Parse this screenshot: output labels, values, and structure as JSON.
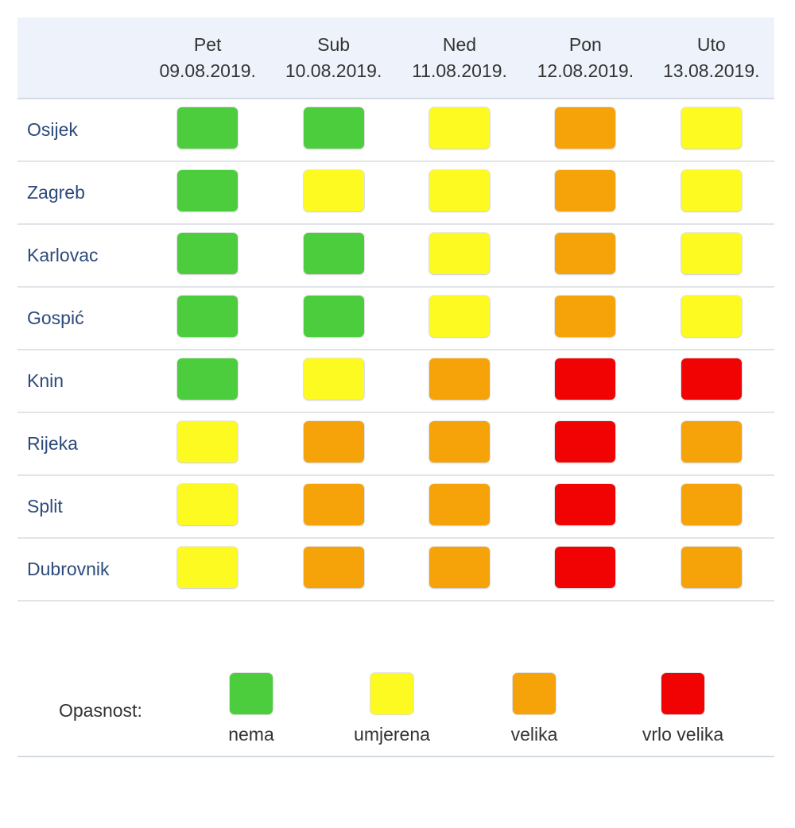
{
  "levels": {
    "nema": {
      "label": "nema",
      "color": "#4ccd3e"
    },
    "umjerena": {
      "label": "umjerena",
      "color": "#fdfa21"
    },
    "velika": {
      "label": "velika",
      "color": "#f6a209"
    },
    "vrlo_velika": {
      "label": "vrlo velika",
      "color": "#f20303"
    }
  },
  "table": {
    "days": [
      {
        "name": "Pet",
        "date": "09.08.2019."
      },
      {
        "name": "Sub",
        "date": "10.08.2019."
      },
      {
        "name": "Ned",
        "date": "11.08.2019."
      },
      {
        "name": "Pon",
        "date": "12.08.2019."
      },
      {
        "name": "Uto",
        "date": "13.08.2019."
      }
    ],
    "rows": [
      {
        "city": "Osijek",
        "levels": [
          "nema",
          "nema",
          "umjerena",
          "velika",
          "umjerena"
        ]
      },
      {
        "city": "Zagreb",
        "levels": [
          "nema",
          "umjerena",
          "umjerena",
          "velika",
          "umjerena"
        ]
      },
      {
        "city": "Karlovac",
        "levels": [
          "nema",
          "nema",
          "umjerena",
          "velika",
          "umjerena"
        ]
      },
      {
        "city": "Gospić",
        "levels": [
          "nema",
          "nema",
          "umjerena",
          "velika",
          "umjerena"
        ]
      },
      {
        "city": "Knin",
        "levels": [
          "nema",
          "umjerena",
          "velika",
          "vrlo_velika",
          "vrlo_velika"
        ]
      },
      {
        "city": "Rijeka",
        "levels": [
          "umjerena",
          "velika",
          "velika",
          "vrlo_velika",
          "velika"
        ]
      },
      {
        "city": "Split",
        "levels": [
          "umjerena",
          "velika",
          "velika",
          "vrlo_velika",
          "velika"
        ]
      },
      {
        "city": "Dubrovnik",
        "levels": [
          "umjerena",
          "velika",
          "velika",
          "vrlo_velika",
          "velika"
        ]
      }
    ]
  },
  "legend": {
    "title": "Opasnost:",
    "items": [
      "nema",
      "umjerena",
      "velika",
      "vrlo_velika"
    ]
  }
}
